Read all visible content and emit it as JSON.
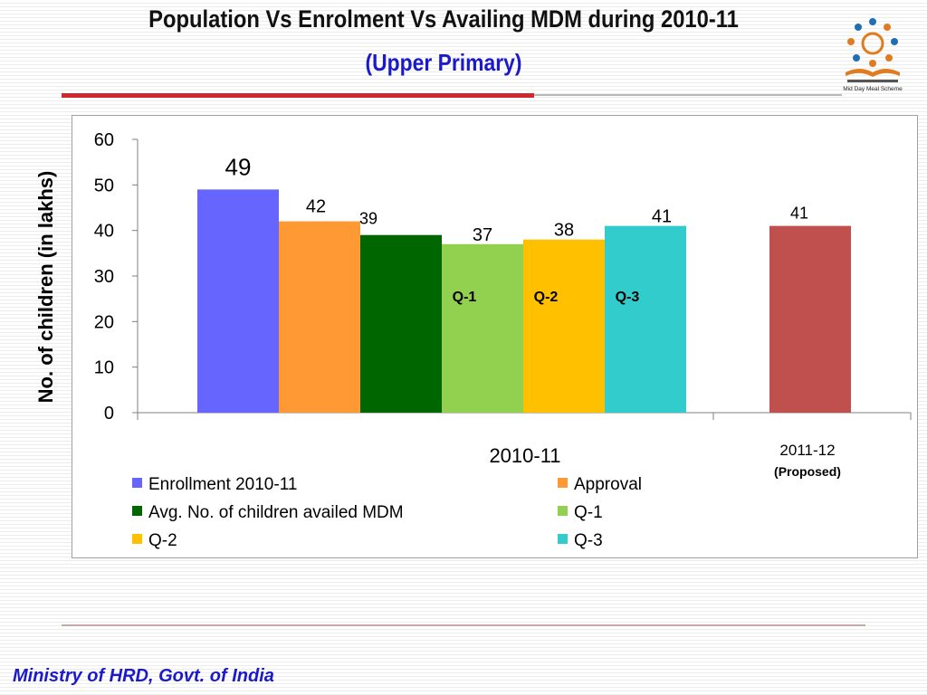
{
  "title": "Population Vs Enrolment Vs Availing MDM during  2010-11",
  "subtitle": "(Upper Primary)",
  "logo_caption": "Mid Day Meal Scheme",
  "footer": "Ministry of HRD, Govt. of India",
  "colors": {
    "title": "#111111",
    "subtitle": "#1a1acc",
    "rule": "#d0262d",
    "footer": "#1a1acc"
  },
  "chart_data": {
    "type": "bar",
    "ylabel": "No. of children (in lakhs)",
    "ylim": [
      0,
      60
    ],
    "yticks": [
      0,
      10,
      20,
      30,
      40,
      50,
      60
    ],
    "grid": false,
    "legend_position": "bottom",
    "groups": [
      {
        "label": "2010-11",
        "sublabel": ""
      },
      {
        "label": "2011-12",
        "sublabel": "(Proposed)"
      }
    ],
    "series": [
      {
        "name": "Enrollment 2010-11",
        "value": 49,
        "group": 0,
        "color": "#6666ff",
        "inner_label": ""
      },
      {
        "name": "Approval",
        "value": 42,
        "group": 0,
        "color": "#ff9933",
        "inner_label": ""
      },
      {
        "name": "Avg. No. of children availed MDM",
        "value": 39,
        "group": 0,
        "color": "#006600",
        "inner_label": ""
      },
      {
        "name": "Q-1",
        "value": 37,
        "group": 0,
        "color": "#92d050",
        "inner_label": "Q-1"
      },
      {
        "name": "Q-2",
        "value": 38,
        "group": 0,
        "color": "#ffc000",
        "inner_label": "Q-2"
      },
      {
        "name": "Q-3",
        "value": 41,
        "group": 0,
        "color": "#33cccc",
        "inner_label": "Q-3"
      },
      {
        "name": "",
        "value": 41,
        "group": 1,
        "color": "#c0504d",
        "inner_label": ""
      }
    ]
  }
}
